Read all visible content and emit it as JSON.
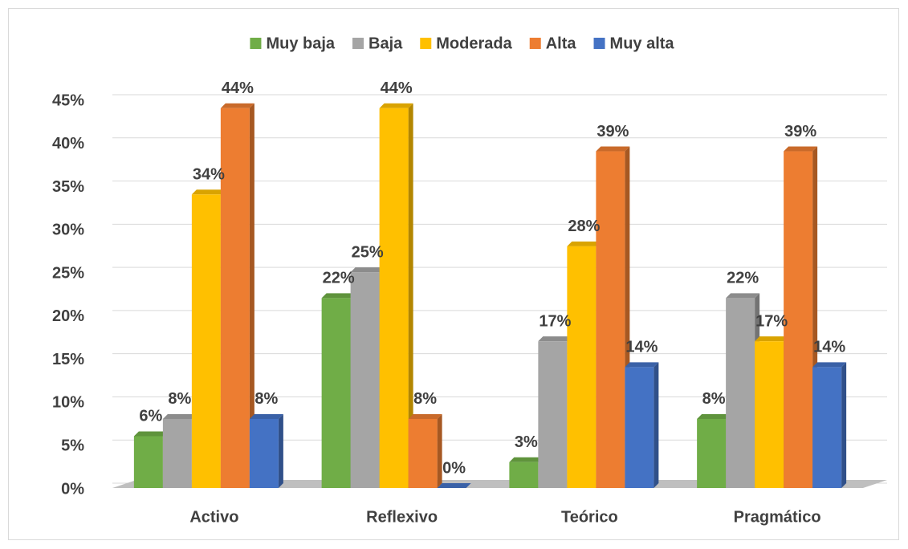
{
  "chart_data": {
    "type": "bar",
    "categories": [
      "Activo",
      "Reflexivo",
      "Teórico",
      "Pragmático"
    ],
    "series": [
      {
        "name": "Muy baja",
        "color": "#70ad47",
        "values": [
          6,
          22,
          3,
          8
        ],
        "value_labels": [
          "6%",
          "22%",
          "3%",
          "8%"
        ]
      },
      {
        "name": "Baja",
        "color": "#a5a5a5",
        "values": [
          8,
          25,
          17,
          22
        ],
        "value_labels": [
          "8%",
          "25%",
          "17%",
          "22%"
        ]
      },
      {
        "name": "Moderada",
        "color": "#ffc000",
        "values": [
          34,
          44,
          28,
          17
        ],
        "value_labels": [
          "34%",
          "44%",
          "28%",
          "17%"
        ]
      },
      {
        "name": "Alta",
        "color": "#ed7d31",
        "values": [
          44,
          8,
          39,
          39
        ],
        "value_labels": [
          "44%",
          "8%",
          "39%",
          "39%"
        ]
      },
      {
        "name": "Muy alta",
        "color": "#4472c4",
        "values": [
          8,
          0,
          14,
          14
        ],
        "value_labels": [
          "8%",
          "0%",
          "14%",
          "14%"
        ]
      }
    ],
    "ylim": [
      0,
      45
    ],
    "yticks": [
      {
        "value": 0,
        "label": "0%"
      },
      {
        "value": 5,
        "label": "5%"
      },
      {
        "value": 10,
        "label": "10%"
      },
      {
        "value": 15,
        "label": "15%"
      },
      {
        "value": 20,
        "label": "20%"
      },
      {
        "value": 25,
        "label": "25%"
      },
      {
        "value": 30,
        "label": "30%"
      },
      {
        "value": 35,
        "label": "35%"
      },
      {
        "value": 40,
        "label": "40%"
      },
      {
        "value": 45,
        "label": "45%"
      }
    ],
    "grid": true,
    "legend": "top"
  }
}
